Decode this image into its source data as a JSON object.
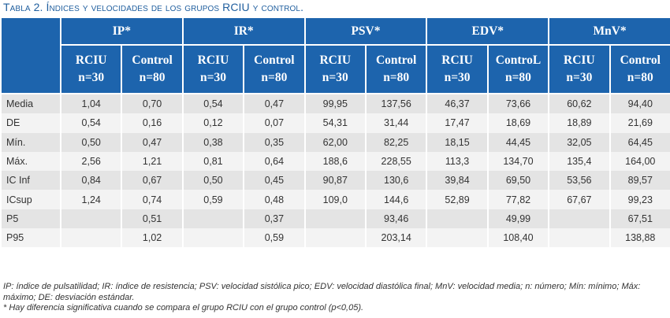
{
  "caption": "Tabla 2. Índices y velocidades de los grupos RCIU y control.",
  "groups": [
    "IP*",
    "IR*",
    "PSV*",
    "EDV*",
    "MnV*"
  ],
  "subheaders": [
    {
      "name": "RCIU",
      "n": "n=30"
    },
    {
      "name": "Control",
      "n": "n=80"
    },
    {
      "name": "RCIU",
      "n": "n=30"
    },
    {
      "name": "Control",
      "n": "n=80"
    },
    {
      "name": "RCIU",
      "n": "n=30"
    },
    {
      "name": "Control",
      "n": "n=80"
    },
    {
      "name": "RCIU",
      "n": "n=30"
    },
    {
      "name": "ControL",
      "n": "n=80"
    },
    {
      "name": "RCIU",
      "n": "n=30"
    },
    {
      "name": "Control",
      "n": "n=80"
    }
  ],
  "rows": [
    {
      "label": "Media",
      "cells": [
        "1,04",
        "0,70",
        "0,54",
        "0,47",
        "99,95",
        "137,56",
        "46,37",
        "73,66",
        "60,62",
        "94,40"
      ]
    },
    {
      "label": "DE",
      "cells": [
        "0,54",
        "0,16",
        "0,12",
        "0,07",
        "54,31",
        "31,44",
        "17,47",
        "18,69",
        "18,89",
        "21,69"
      ]
    },
    {
      "label": "Mín.",
      "cells": [
        "0,50",
        "0,47",
        "0,38",
        "0,35",
        "62,00",
        "82,25",
        "18,15",
        "44,45",
        "32,05",
        "64,45"
      ]
    },
    {
      "label": "Máx.",
      "cells": [
        "2,56",
        "1,21",
        "0,81",
        "0,64",
        "188,6",
        "228,55",
        "113,3",
        "134,70",
        "135,4",
        "164,00"
      ]
    },
    {
      "label": "IC Inf",
      "cells": [
        "0,84",
        "0,67",
        "0,50",
        "0,45",
        "90,87",
        "130,6",
        "39,84",
        "69,50",
        "53,56",
        "89,57"
      ]
    },
    {
      "label": "ICsup",
      "cells": [
        "1,24",
        "0,74",
        "0,59",
        "0,48",
        "109,0",
        "144,6",
        "52,89",
        "77,82",
        "67,67",
        "99,23"
      ]
    },
    {
      "label": "P5",
      "cells": [
        "",
        "0,51",
        "",
        "0,37",
        "",
        "93,46",
        "",
        "49,99",
        "",
        "67,51"
      ]
    },
    {
      "label": "P95",
      "cells": [
        "",
        "1,02",
        "",
        "0,59",
        "",
        "203,14",
        "",
        "108,40",
        "",
        "138,88"
      ]
    }
  ],
  "footnotes": [
    "IP: índice de pulsatilidad; IR: índice de resistencia; PSV: velocidad sistólica pico; EDV: velocidad diastólica final; MnV: velocidad media; n: número; Mín: mínimo; Máx: máximo; DE: desviación estándar.",
    "* Hay diferencia significativa cuando se compara el grupo RCIU con el grupo control (p<0,05)."
  ],
  "colors": {
    "header_bg": "#1d64ad",
    "caption": "#1f5e9e",
    "row_odd": "#e4e4e4",
    "row_even": "#f3f3f3"
  }
}
